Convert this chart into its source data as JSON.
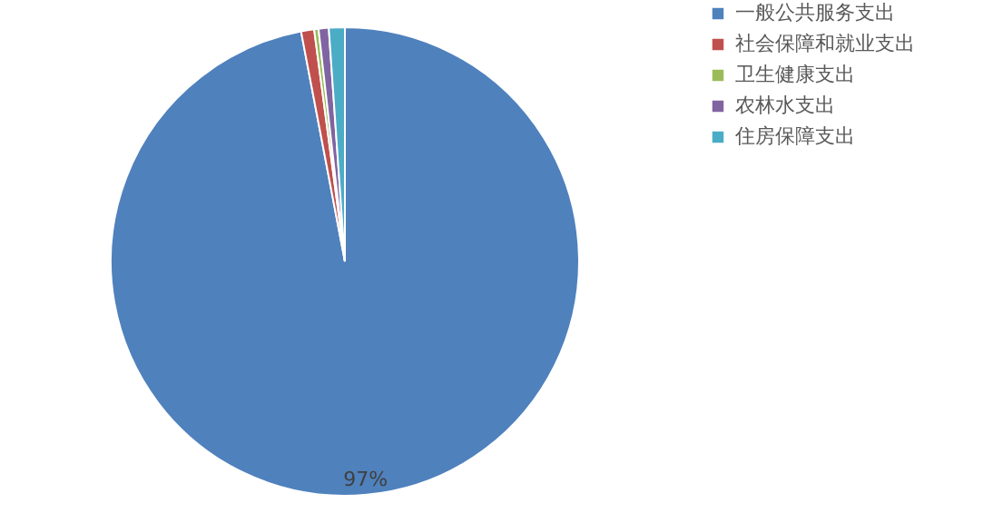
{
  "chart_data": {
    "type": "pie",
    "categories": [
      "一般公共服务支出",
      "社会保障和就业支出",
      "卫生健康支出",
      "农林水支出",
      "住房保障支出"
    ],
    "values": [
      97,
      0.9,
      0.3,
      0.7,
      1.1
    ],
    "colors": [
      "#4f81bd",
      "#c0504d",
      "#9bbb59",
      "#8064a2",
      "#4bacc6"
    ],
    "value_labels": [
      "97%",
      null,
      null,
      null,
      null
    ],
    "legend": "right"
  }
}
